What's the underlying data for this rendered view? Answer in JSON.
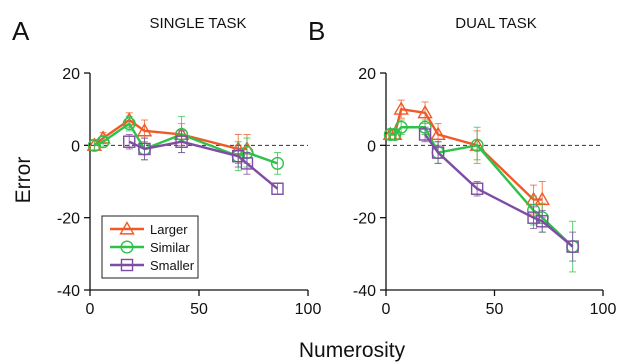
{
  "figure": {
    "xlabel": "Numerosity",
    "ylabel": "Error"
  },
  "chart_data": [
    {
      "type": "line",
      "panel": "A",
      "title": "SINGLE TASK",
      "xlim": [
        0,
        100
      ],
      "ylim": [
        -40,
        20
      ],
      "xticks": [
        0,
        50,
        100
      ],
      "yticks": [
        -40,
        -20,
        0,
        20
      ],
      "zero_line": "dashed",
      "legend": {
        "placement": "bottom-left",
        "entries": [
          "Larger",
          "Similar",
          "Smaller"
        ]
      },
      "series": [
        {
          "name": "Larger",
          "color": "#f05a28",
          "marker": "triangle",
          "points": [
            {
              "x": 2,
              "y": 0,
              "err": 1.5
            },
            {
              "x": 6,
              "y": 2,
              "err": 1.5
            },
            {
              "x": 18,
              "y": 7,
              "err": 2
            },
            {
              "x": 25,
              "y": 4,
              "err": 3
            },
            {
              "x": 42,
              "y": 3,
              "err": 3
            },
            {
              "x": 68,
              "y": -1,
              "err": 4
            },
            {
              "x": 72,
              "y": -1,
              "err": 4
            }
          ]
        },
        {
          "name": "Similar",
          "color": "#2ec24a",
          "marker": "circle",
          "points": [
            {
              "x": 2,
              "y": 0,
              "err": 1.5
            },
            {
              "x": 6,
              "y": 1,
              "err": 1.5
            },
            {
              "x": 18,
              "y": 6,
              "err": 2
            },
            {
              "x": 25,
              "y": -1,
              "err": 3
            },
            {
              "x": 42,
              "y": 3,
              "err": 5
            },
            {
              "x": 68,
              "y": -3,
              "err": 4
            },
            {
              "x": 72,
              "y": -2,
              "err": 4
            },
            {
              "x": 86,
              "y": -5,
              "err": 3
            }
          ]
        },
        {
          "name": "Smaller",
          "color": "#7e4ca3",
          "marker": "square",
          "points": [
            {
              "x": 18,
              "y": 1,
              "err": 2
            },
            {
              "x": 25,
              "y": -1,
              "err": 3
            },
            {
              "x": 42,
              "y": 1,
              "err": 3
            },
            {
              "x": 68,
              "y": -3,
              "err": 3
            },
            {
              "x": 72,
              "y": -5,
              "err": 3
            },
            {
              "x": 86,
              "y": -12,
              "err": 1.5
            }
          ]
        }
      ]
    },
    {
      "type": "line",
      "panel": "B",
      "title": "DUAL TASK",
      "xlim": [
        0,
        100
      ],
      "ylim": [
        -40,
        20
      ],
      "xticks": [
        0,
        50,
        100
      ],
      "yticks": [
        -40,
        -20,
        0,
        20
      ],
      "zero_line": "dashed",
      "series": [
        {
          "name": "Larger",
          "color": "#f05a28",
          "marker": "triangle",
          "points": [
            {
              "x": 2,
              "y": 3,
              "err": 1.5
            },
            {
              "x": 4,
              "y": 3,
              "err": 1.5
            },
            {
              "x": 7,
              "y": 10,
              "err": 2.5
            },
            {
              "x": 18,
              "y": 9,
              "err": 3
            },
            {
              "x": 24,
              "y": 3,
              "err": 3
            },
            {
              "x": 42,
              "y": 0,
              "err": 4
            },
            {
              "x": 68,
              "y": -15,
              "err": 4
            },
            {
              "x": 72,
              "y": -15,
              "err": 5
            }
          ]
        },
        {
          "name": "Similar",
          "color": "#2ec24a",
          "marker": "circle",
          "points": [
            {
              "x": 2,
              "y": 3,
              "err": 1.5
            },
            {
              "x": 4,
              "y": 3,
              "err": 1.5
            },
            {
              "x": 7,
              "y": 5,
              "err": 2
            },
            {
              "x": 18,
              "y": 5,
              "err": 2
            },
            {
              "x": 24,
              "y": -2,
              "err": 3
            },
            {
              "x": 42,
              "y": 0,
              "err": 5
            },
            {
              "x": 68,
              "y": -18,
              "err": 4
            },
            {
              "x": 72,
              "y": -20,
              "err": 4
            },
            {
              "x": 86,
              "y": -28,
              "err": 7
            }
          ]
        },
        {
          "name": "Smaller",
          "color": "#7e4ca3",
          "marker": "square",
          "points": [
            {
              "x": 18,
              "y": 3,
              "err": 2
            },
            {
              "x": 24,
              "y": -2,
              "err": 3
            },
            {
              "x": 42,
              "y": -12,
              "err": 2
            },
            {
              "x": 68,
              "y": -20,
              "err": 3
            },
            {
              "x": 72,
              "y": -21,
              "err": 3
            },
            {
              "x": 86,
              "y": -28,
              "err": 4
            }
          ]
        }
      ]
    }
  ]
}
